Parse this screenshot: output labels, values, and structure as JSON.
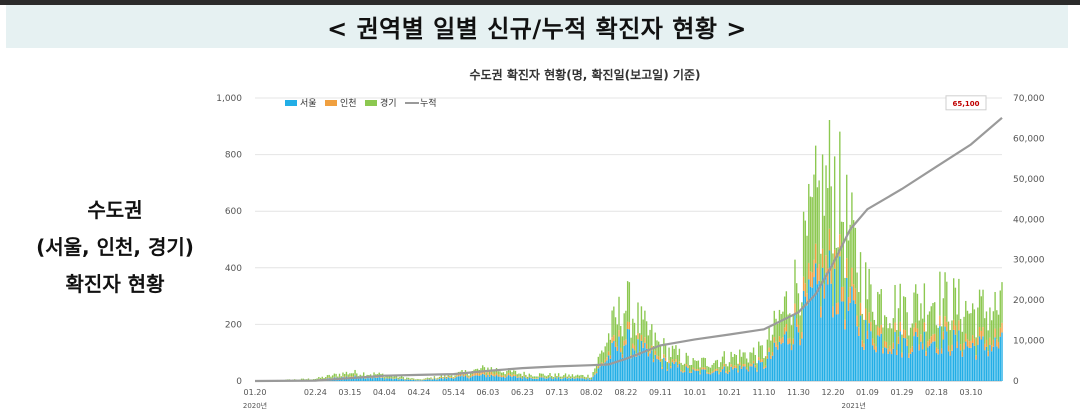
{
  "header": {
    "title": "< 권역별 일별 신규/누적 확진자 현황 >"
  },
  "side": {
    "line1": "수도권",
    "line2": "(서울, 인천, 경기)",
    "line3": "확진자 현황"
  },
  "chart_data": {
    "type": "bar",
    "stacked": true,
    "title": "수도권 확진자 현황(명, 확진일(보고일) 기준)",
    "legend": [
      "서울",
      "인천",
      "경기",
      "누적"
    ],
    "legend_position": "top-left",
    "colors": {
      "서울": "#22aee6",
      "인천": "#f0a040",
      "경기": "#8cc850",
      "누적": "#9a9a9a"
    },
    "x_ticks": [
      "01.20",
      "02.24",
      "03.15",
      "04.04",
      "04.24",
      "05.14",
      "06.03",
      "06.23",
      "07.13",
      "08.02",
      "08.22",
      "09.11",
      "10.01",
      "10.21",
      "11.10",
      "11.30",
      "12.20",
      "01.09",
      "01.29",
      "02.18",
      "03.10"
    ],
    "x_year_labels": [
      "2020년",
      "2021년"
    ],
    "y_left": {
      "ylim": [
        0,
        1000
      ],
      "ticks": [
        "0",
        "200",
        "400",
        "600",
        "800",
        "1,000"
      ]
    },
    "y_right": {
      "ylim": [
        0,
        70000
      ],
      "ticks": [
        "0",
        "10,000",
        "20,000",
        "30,000",
        "40,000",
        "50,000",
        "60,000",
        "70,000"
      ]
    },
    "cumulative_label": "65,100",
    "cumulative_anchors": [
      {
        "date": "2020-01-20",
        "value": 0
      },
      {
        "date": "2020-02-24",
        "value": 100
      },
      {
        "date": "2020-03-15",
        "value": 700
      },
      {
        "date": "2020-04-04",
        "value": 1300
      },
      {
        "date": "2020-04-24",
        "value": 1500
      },
      {
        "date": "2020-05-14",
        "value": 1700
      },
      {
        "date": "2020-06-03",
        "value": 2500
      },
      {
        "date": "2020-06-23",
        "value": 3200
      },
      {
        "date": "2020-07-13",
        "value": 3600
      },
      {
        "date": "2020-08-02",
        "value": 3900
      },
      {
        "date": "2020-08-12",
        "value": 4100
      },
      {
        "date": "2020-08-22",
        "value": 5500
      },
      {
        "date": "2020-09-11",
        "value": 8800
      },
      {
        "date": "2020-10-01",
        "value": 10300
      },
      {
        "date": "2020-10-21",
        "value": 11500
      },
      {
        "date": "2020-11-10",
        "value": 12800
      },
      {
        "date": "2020-11-30",
        "value": 17000
      },
      {
        "date": "2020-12-10",
        "value": 21500
      },
      {
        "date": "2020-12-20",
        "value": 29000
      },
      {
        "date": "2020-12-30",
        "value": 37500
      },
      {
        "date": "2021-01-09",
        "value": 42500
      },
      {
        "date": "2021-01-29",
        "value": 47500
      },
      {
        "date": "2021-02-18",
        "value": 53000
      },
      {
        "date": "2021-03-10",
        "value": 58500
      },
      {
        "date": "2021-03-28",
        "value": 65100
      }
    ],
    "daily_envelope": [
      {
        "date": "2020-01-20",
        "seoul": 0,
        "incheon": 0,
        "gyeonggi": 0
      },
      {
        "date": "2020-02-24",
        "seoul": 3,
        "incheon": 1,
        "gyeonggi": 4
      },
      {
        "date": "2020-03-09",
        "seoul": 12,
        "incheon": 2,
        "gyeonggi": 10
      },
      {
        "date": "2020-03-15",
        "seoul": 15,
        "incheon": 3,
        "gyeonggi": 12
      },
      {
        "date": "2020-04-04",
        "seoul": 10,
        "incheon": 2,
        "gyeonggi": 10
      },
      {
        "date": "2020-04-24",
        "seoul": 2,
        "incheon": 1,
        "gyeonggi": 2
      },
      {
        "date": "2020-05-14",
        "seoul": 12,
        "incheon": 4,
        "gyeonggi": 6
      },
      {
        "date": "2020-06-03",
        "seoul": 20,
        "incheon": 10,
        "gyeonggi": 15
      },
      {
        "date": "2020-06-23",
        "seoul": 12,
        "incheon": 3,
        "gyeonggi": 10
      },
      {
        "date": "2020-07-13",
        "seoul": 10,
        "incheon": 2,
        "gyeonggi": 8
      },
      {
        "date": "2020-08-02",
        "seoul": 8,
        "incheon": 2,
        "gyeonggi": 8
      },
      {
        "date": "2020-08-14",
        "seoul": 100,
        "incheon": 15,
        "gyeonggi": 70
      },
      {
        "date": "2020-08-22",
        "seoul": 140,
        "incheon": 20,
        "gyeonggi": 110
      },
      {
        "date": "2020-09-01",
        "seoul": 100,
        "incheon": 15,
        "gyeonggi": 70
      },
      {
        "date": "2020-09-11",
        "seoul": 65,
        "incheon": 10,
        "gyeonggi": 45
      },
      {
        "date": "2020-10-01",
        "seoul": 30,
        "incheon": 5,
        "gyeonggi": 25
      },
      {
        "date": "2020-10-21",
        "seoul": 40,
        "incheon": 8,
        "gyeonggi": 35
      },
      {
        "date": "2020-11-10",
        "seoul": 55,
        "incheon": 8,
        "gyeonggi": 40
      },
      {
        "date": "2020-11-30",
        "seoul": 200,
        "incheon": 30,
        "gyeonggi": 130
      },
      {
        "date": "2020-12-10",
        "seoul": 300,
        "incheon": 50,
        "gyeonggi": 250
      },
      {
        "date": "2020-12-20",
        "seoul": 360,
        "incheon": 60,
        "gyeonggi": 300
      },
      {
        "date": "2020-12-30",
        "seoul": 250,
        "incheon": 50,
        "gyeonggi": 200
      },
      {
        "date": "2021-01-09",
        "seoul": 160,
        "incheon": 30,
        "gyeonggi": 120
      },
      {
        "date": "2021-01-29",
        "seoul": 130,
        "incheon": 25,
        "gyeonggi": 100
      },
      {
        "date": "2021-02-18",
        "seoul": 150,
        "incheon": 28,
        "gyeonggi": 120
      },
      {
        "date": "2021-03-10",
        "seoul": 120,
        "incheon": 25,
        "gyeonggi": 100
      },
      {
        "date": "2021-03-28",
        "seoul": 125,
        "incheon": 25,
        "gyeonggi": 105
      }
    ]
  }
}
